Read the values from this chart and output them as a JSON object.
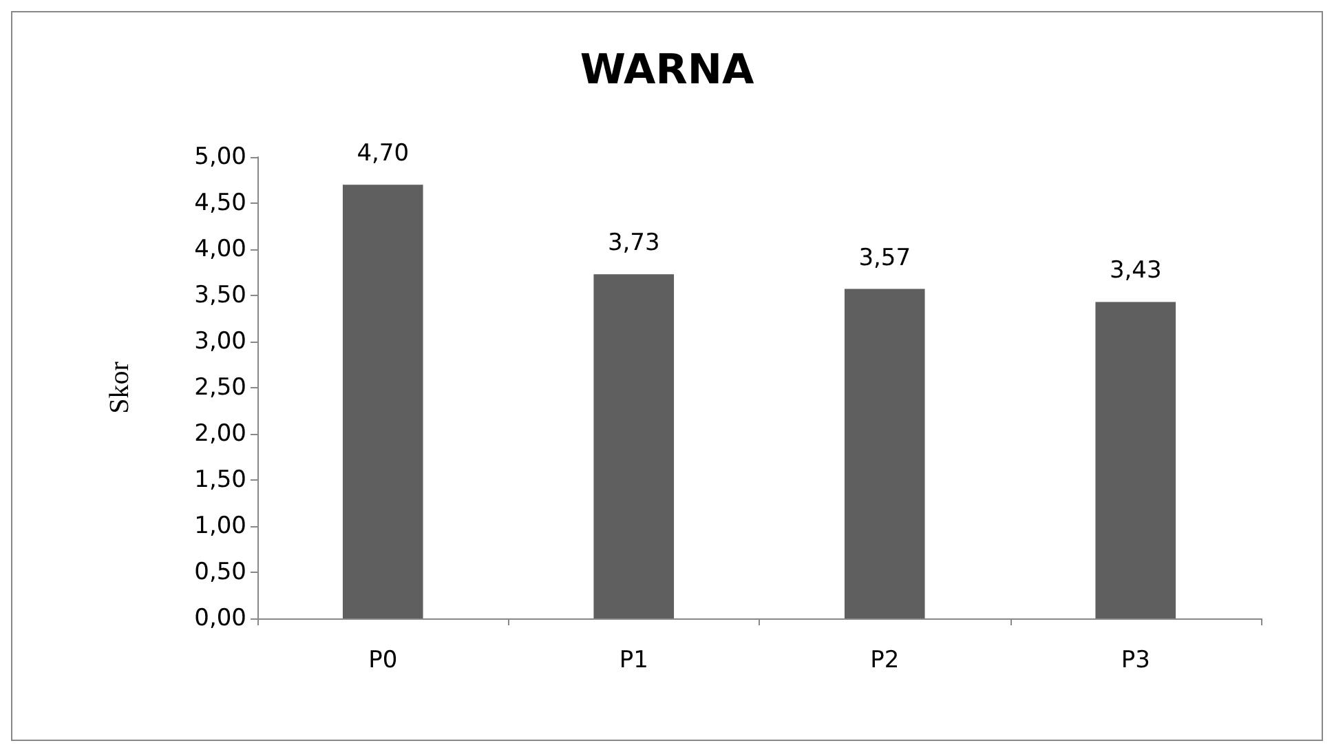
{
  "chart_data": {
    "type": "bar",
    "title": "WARNA",
    "ylabel": "Skor",
    "categories": [
      "P0",
      "P1",
      "P2",
      "P3"
    ],
    "values": [
      4.7,
      3.73,
      3.57,
      3.43
    ],
    "value_labels": [
      "4,70",
      "3,73",
      "3,57",
      "3,43"
    ],
    "color": "#5f5f5f",
    "ylim": [
      0,
      5
    ],
    "yticks": [
      {
        "value": 0,
        "label": "0,00"
      },
      {
        "value": 0.5,
        "label": "0,50"
      },
      {
        "value": 1,
        "label": "1,00"
      },
      {
        "value": 1.5,
        "label": "1,50"
      },
      {
        "value": 2,
        "label": "2,00"
      },
      {
        "value": 2.5,
        "label": "2,50"
      },
      {
        "value": 3,
        "label": "3,00"
      },
      {
        "value": 3.5,
        "label": "3,50"
      },
      {
        "value": 4,
        "label": "4,00"
      },
      {
        "value": 4.5,
        "label": "4,50"
      },
      {
        "value": 5,
        "label": "5,00"
      }
    ],
    "grid": false
  }
}
